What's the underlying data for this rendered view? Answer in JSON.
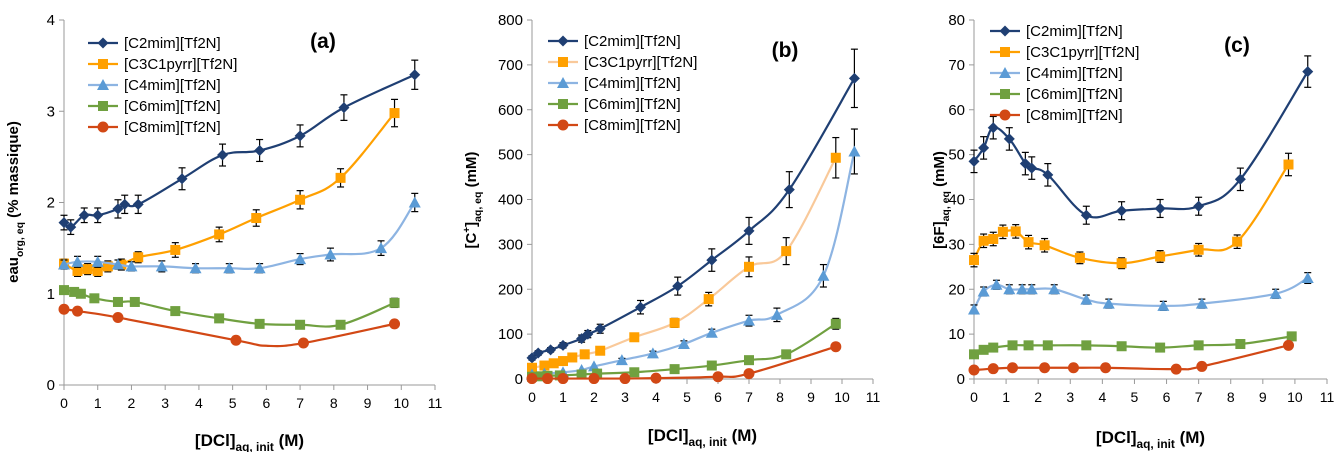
{
  "colors": {
    "C2mim": "#1f3f73",
    "C3C1pyrr": "#ffa000",
    "C3C1pyrr_line": "#f9c99a",
    "C4mim": "#5b9bd5",
    "C4mim_line": "#8db4e2",
    "C6mim": "#70a040",
    "C8mim": "#d24815",
    "axis": "#999999",
    "text": "#000000"
  },
  "chart_data": [
    {
      "type": "line",
      "panel_label": "(a)",
      "ylabel": {
        "main": "eau",
        "sub": "org, eq",
        "tail": " (% massique)"
      },
      "xlabel": {
        "main": "[DCl]",
        "sub": "aq, init",
        "tail": " (M)"
      },
      "xlim": [
        0,
        11
      ],
      "ylim": [
        0,
        4
      ],
      "xticks": [
        "0",
        "1",
        "2",
        "3",
        "4",
        "5",
        "6",
        "7",
        "8",
        "9",
        "10",
        "11"
      ],
      "yticks": [
        "0",
        "1",
        "2",
        "3",
        "4"
      ],
      "legend_position": "top-left",
      "error_bars": true,
      "series": [
        {
          "name": "[C2mim][Tf2N]",
          "marker": "diamond",
          "color_key": "C2mim",
          "line_key": "C2mim",
          "x": [
            0,
            0.2,
            0.6,
            1.0,
            1.6,
            1.8,
            2.2,
            3.5,
            4.7,
            5.8,
            7.0,
            8.3,
            10.4
          ],
          "y": [
            1.78,
            1.73,
            1.86,
            1.86,
            1.93,
            1.98,
            1.98,
            2.26,
            2.52,
            2.57,
            2.73,
            3.04,
            3.4
          ],
          "err": [
            0.08,
            0.08,
            0.08,
            0.08,
            0.1,
            0.1,
            0.1,
            0.12,
            0.12,
            0.12,
            0.12,
            0.14,
            0.16
          ]
        },
        {
          "name": "[C3C1pyrr][Tf2N]",
          "marker": "square",
          "color_key": "C3C1pyrr",
          "line_key": "C3C1pyrr",
          "x": [
            0,
            0.4,
            0.7,
            1.0,
            1.3,
            1.7,
            2.2,
            3.3,
            4.6,
            5.7,
            7.0,
            8.2,
            9.8
          ],
          "y": [
            1.33,
            1.25,
            1.27,
            1.25,
            1.3,
            1.32,
            1.4,
            1.48,
            1.65,
            1.83,
            2.03,
            2.27,
            2.98
          ],
          "err": [
            0.05,
            0.06,
            0.06,
            0.06,
            0.06,
            0.06,
            0.06,
            0.08,
            0.08,
            0.09,
            0.1,
            0.1,
            0.15
          ]
        },
        {
          "name": "[C4mim][Tf2N]",
          "marker": "triangle",
          "color_key": "C4mim",
          "line_key": "C4mim_line",
          "x": [
            0,
            0.4,
            1.0,
            1.6,
            2.0,
            2.9,
            3.9,
            4.9,
            5.8,
            7.0,
            7.9,
            9.4,
            10.4
          ],
          "y": [
            1.32,
            1.35,
            1.35,
            1.32,
            1.3,
            1.3,
            1.28,
            1.28,
            1.28,
            1.38,
            1.43,
            1.5,
            2.0
          ],
          "err": [
            0.05,
            0.06,
            0.06,
            0.05,
            0.05,
            0.06,
            0.05,
            0.05,
            0.05,
            0.06,
            0.07,
            0.08,
            0.1
          ]
        },
        {
          "name": "[C6mim][Tf2N]",
          "marker": "square",
          "color_key": "C6mim",
          "line_key": "C6mim",
          "x": [
            0,
            0.3,
            0.5,
            0.9,
            1.6,
            2.1,
            3.3,
            4.6,
            5.8,
            7.0,
            8.2,
            9.8
          ],
          "y": [
            1.04,
            1.02,
            1.0,
            0.95,
            0.91,
            0.91,
            0.81,
            0.73,
            0.67,
            0.66,
            0.66,
            0.9
          ],
          "err": [
            0.03,
            0.03,
            0.03,
            0.03,
            0.03,
            0.03,
            0.03,
            0.03,
            0.03,
            0.03,
            0.03,
            0.05
          ]
        },
        {
          "name": "[C8mim][Tf2N]",
          "marker": "circle",
          "color_key": "C8mim",
          "line_key": "C8mim",
          "x": [
            0,
            0.4,
            1.6,
            5.1,
            7.1,
            9.8
          ],
          "y": [
            0.83,
            0.81,
            0.74,
            0.49,
            0.46,
            0.67
          ],
          "err": [
            0.02,
            0.02,
            0.02,
            0.02,
            0.02,
            0.03
          ],
          "smooth_y": [
            0.83,
            0.81,
            0.74,
            0.49,
            0.43,
            0.46,
            0.67
          ],
          "smooth_x": [
            0,
            0.4,
            1.6,
            5.1,
            6.0,
            7.1,
            9.8
          ]
        }
      ]
    },
    {
      "type": "line",
      "panel_label": "(b)",
      "ylabel": {
        "main": "[C",
        "sup": "+",
        "close": "]",
        "sub": "aq, eq",
        "tail": " (mM)"
      },
      "xlabel": {
        "main": "[DCl]",
        "sub": "aq, init",
        "tail": " (M)"
      },
      "xlim": [
        0,
        11
      ],
      "ylim": [
        0,
        800
      ],
      "xticks": [
        "0",
        "1",
        "2",
        "3",
        "4",
        "5",
        "6",
        "7",
        "8",
        "9",
        "10",
        "11"
      ],
      "yticks": [
        "0",
        "100",
        "200",
        "300",
        "400",
        "500",
        "600",
        "700",
        "800"
      ],
      "legend_position": "top-left",
      "error_bars": true,
      "series": [
        {
          "name": "[C2mim][Tf2N]",
          "marker": "diamond",
          "color_key": "C2mim",
          "line_key": "C2mim",
          "x": [
            0,
            0.2,
            0.6,
            1.0,
            1.6,
            1.8,
            2.2,
            3.5,
            4.7,
            5.8,
            7.0,
            8.3,
            10.4
          ],
          "y": [
            47,
            58,
            65,
            75,
            90,
            100,
            112,
            160,
            207,
            265,
            330,
            422,
            670
          ],
          "err": [
            5,
            5,
            5,
            6,
            8,
            8,
            10,
            15,
            20,
            25,
            30,
            40,
            65
          ]
        },
        {
          "name": "[C3C1pyrr][Tf2N]",
          "marker": "square",
          "color_key": "C3C1pyrr",
          "line_key": "C3C1pyrr_line",
          "x": [
            0,
            0.4,
            0.7,
            1.0,
            1.3,
            1.7,
            2.2,
            3.3,
            4.6,
            5.7,
            7.0,
            8.2,
            9.8
          ],
          "y": [
            25,
            30,
            35,
            40,
            48,
            55,
            63,
            93,
            125,
            178,
            250,
            285,
            493
          ],
          "err": [
            3,
            3,
            4,
            4,
            4,
            5,
            5,
            8,
            10,
            15,
            22,
            30,
            45
          ]
        },
        {
          "name": "[C4mim][Tf2N]",
          "marker": "triangle",
          "color_key": "C4mim",
          "line_key": "C4mim_line",
          "x": [
            0,
            0.4,
            1.0,
            1.6,
            2.0,
            2.9,
            3.9,
            4.9,
            5.8,
            7.0,
            7.9,
            9.4,
            10.4
          ],
          "y": [
            10,
            12,
            15,
            20,
            28,
            42,
            57,
            78,
            103,
            130,
            143,
            230,
            507
          ],
          "err": [
            2,
            2,
            2,
            3,
            3,
            4,
            5,
            7,
            8,
            12,
            15,
            25,
            50
          ]
        },
        {
          "name": "[C6mim][Tf2N]",
          "marker": "square",
          "color_key": "C6mim",
          "line_key": "C6mim",
          "x": [
            0,
            0.3,
            0.5,
            0.9,
            1.6,
            2.1,
            3.3,
            4.6,
            5.8,
            7.0,
            8.2,
            9.8
          ],
          "y": [
            5,
            6,
            7,
            8,
            10,
            12,
            15,
            22,
            30,
            42,
            55,
            123
          ],
          "err": [
            1,
            1,
            1,
            1,
            1,
            2,
            2,
            2,
            3,
            4,
            5,
            12
          ]
        },
        {
          "name": "[C8mim][Tf2N]",
          "marker": "circle",
          "color_key": "C8mim",
          "line_key": "C8mim",
          "x": [
            0,
            0.5,
            1.0,
            2.0,
            3.0,
            4.0,
            6.0,
            7.0,
            9.8
          ],
          "y": [
            1,
            1,
            1,
            1,
            1,
            2,
            5,
            12,
            72
          ],
          "err": [
            0.5,
            0.5,
            0.5,
            0.5,
            0.5,
            1,
            1,
            2,
            6
          ]
        }
      ]
    },
    {
      "type": "line",
      "panel_label": "(c)",
      "ylabel": {
        "main": "[6F]",
        "sub": "aq, eq",
        "tail": " (mM)"
      },
      "xlabel": {
        "main": "[DCl]",
        "sub": "aq, init",
        "tail": " (M)"
      },
      "xlim": [
        0,
        11
      ],
      "ylim": [
        0,
        80
      ],
      "xticks": [
        "0",
        "1",
        "2",
        "3",
        "4",
        "5",
        "6",
        "7",
        "8",
        "9",
        "10",
        "11"
      ],
      "yticks": [
        "0",
        "10",
        "20",
        "30",
        "40",
        "50",
        "60",
        "70",
        "80"
      ],
      "legend_position": "top-left",
      "error_bars": true,
      "series": [
        {
          "name": "[C2mim][Tf2N]",
          "marker": "diamond",
          "color_key": "C2mim",
          "line_key": "C2mim",
          "x": [
            0,
            0.3,
            0.6,
            1.1,
            1.6,
            1.8,
            2.3,
            3.5,
            4.6,
            5.8,
            7.0,
            8.3,
            10.4
          ],
          "y": [
            48.5,
            51.5,
            56,
            53.5,
            48,
            47,
            45.5,
            36.5,
            37.5,
            38,
            38.5,
            44.5,
            68.5
          ],
          "err": [
            2.5,
            2.5,
            2.5,
            2.5,
            2.5,
            2.5,
            2.5,
            2,
            2,
            2,
            2,
            2.5,
            3.5
          ]
        },
        {
          "name": "[C3C1pyrr][Tf2N]",
          "marker": "square",
          "color_key": "C3C1pyrr",
          "line_key": "C3C1pyrr",
          "x": [
            0,
            0.3,
            0.6,
            0.9,
            1.3,
            1.7,
            2.2,
            3.3,
            4.6,
            5.8,
            7.0,
            8.2,
            9.8
          ],
          "y": [
            26.5,
            30.8,
            31.2,
            32.8,
            32.9,
            30.5,
            29.8,
            27,
            25.8,
            27.3,
            28.8,
            30.6,
            47.8
          ],
          "err": [
            1.5,
            1.5,
            1.5,
            1.5,
            1.5,
            1.5,
            1.5,
            1.3,
            1.2,
            1.3,
            1.4,
            1.5,
            2.5
          ]
        },
        {
          "name": "[C4mim][Tf2N]",
          "marker": "triangle",
          "color_key": "C4mim",
          "line_key": "C4mim_line",
          "x": [
            0,
            0.3,
            0.7,
            1.1,
            1.5,
            1.8,
            2.5,
            3.5,
            4.2,
            5.9,
            7.1,
            9.4,
            10.4
          ],
          "y": [
            15.5,
            19.5,
            21,
            20,
            20,
            20,
            20,
            17.7,
            16.8,
            16.3,
            16.8,
            19,
            22.5
          ],
          "err": [
            1,
            1,
            1,
            1,
            1,
            1,
            1,
            1,
            1,
            1,
            1,
            1,
            1.2
          ]
        },
        {
          "name": "[C6mim][Tf2N]",
          "marker": "square",
          "color_key": "C6mim",
          "line_key": "C6mim",
          "x": [
            0,
            0.3,
            0.6,
            1.2,
            1.7,
            2.3,
            3.5,
            4.6,
            5.8,
            7.0,
            8.3,
            9.9
          ],
          "y": [
            5.5,
            6.5,
            7,
            7.5,
            7.5,
            7.5,
            7.5,
            7.3,
            7,
            7.5,
            7.8,
            9.5
          ],
          "err": [
            0.4,
            0.4,
            0.4,
            0.4,
            0.4,
            0.4,
            0.4,
            0.4,
            0.4,
            0.4,
            0.4,
            0.5
          ]
        },
        {
          "name": "[C8mim][Tf2N]",
          "marker": "circle",
          "color_key": "C8mim",
          "line_key": "C8mim",
          "x": [
            0,
            0.6,
            1.2,
            2.2,
            3.1,
            4.1,
            6.3,
            7.1,
            9.8
          ],
          "y": [
            2,
            2.3,
            2.5,
            2.5,
            2.5,
            2.5,
            2.2,
            2.8,
            7.5
          ],
          "err": [
            0.2,
            0.2,
            0.2,
            0.2,
            0.2,
            0.2,
            0.2,
            0.2,
            0.5
          ]
        }
      ]
    }
  ]
}
